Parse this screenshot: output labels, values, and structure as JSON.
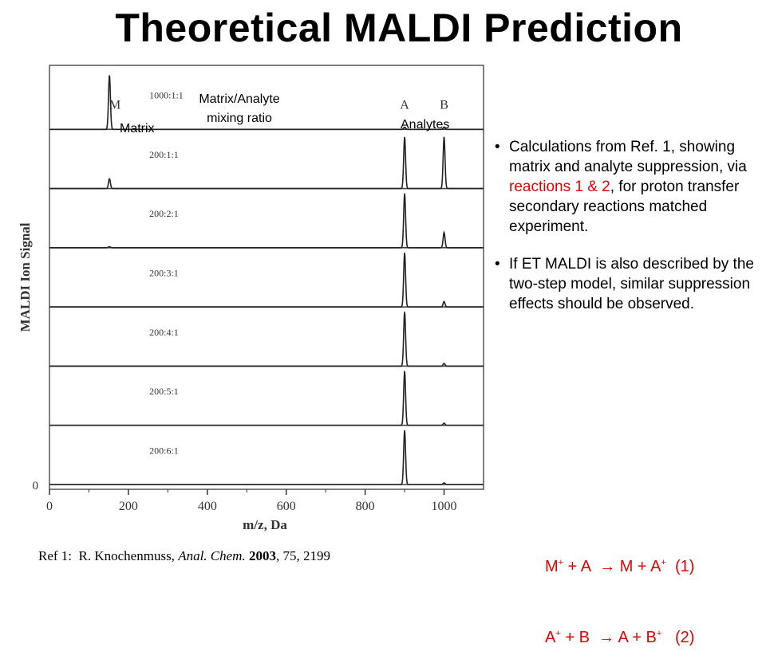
{
  "slide": {
    "title": "Theoretical MALDI Prediction",
    "annotations": {
      "matrix": "Matrix",
      "mixing_ratio_line1": "Matrix/Analyte",
      "mixing_ratio_line2": "mixing ratio",
      "analytes": "Analytes"
    },
    "bullets": [
      {
        "before": "Calculations from Ref. 1, showing matrix and analyte suppression, via ",
        "highlight": "reactions 1 & 2",
        "after": ", for proton transfer secondary reactions matched experiment."
      },
      {
        "before": " If ET MALDI is also described by the two-step model, similar suppression effects should be observed.",
        "highlight": "",
        "after": ""
      }
    ],
    "reactions": [
      {
        "lhs1": "M",
        "sup1": "+",
        "lhs2": " + A  ",
        "arrow": "→",
        "rhs1": " M + A",
        "sup2": "+",
        "label": "  (1)"
      },
      {
        "lhs1": "A",
        "sup1": "+",
        "lhs2": " + B  ",
        "arrow": "→",
        "rhs1": " A + B",
        "sup2": "+",
        "label": "   (2)"
      }
    ],
    "reference": {
      "prefix": "Ref 1:  R. Knochenmuss, ",
      "journal": "Anal. Chem.",
      "year": "2003",
      "rest": ", 75, 2199"
    }
  },
  "chart_data": {
    "type": "line",
    "xlabel": "m/z, Da",
    "ylabel": "MALDI Ion Signal",
    "xlim": [
      0,
      1100
    ],
    "x_ticks": [
      0,
      200,
      400,
      600,
      800,
      1000
    ],
    "y_tick_label": "0",
    "peak_labels": [
      {
        "label": "M",
        "x": 152
      },
      {
        "label": "A",
        "x": 900
      },
      {
        "label": "B",
        "x": 1000
      }
    ],
    "series": [
      {
        "name": "1000:1:1",
        "peaks": [
          {
            "x": 152,
            "h": 1.0
          },
          {
            "x": 900,
            "h": 0.04
          },
          {
            "x": 1000,
            "h": 0.04
          }
        ]
      },
      {
        "name": "200:1:1",
        "peaks": [
          {
            "x": 152,
            "h": 0.18
          },
          {
            "x": 900,
            "h": 0.95
          },
          {
            "x": 1000,
            "h": 0.95
          }
        ]
      },
      {
        "name": "200:2:1",
        "peaks": [
          {
            "x": 152,
            "h": 0.02
          },
          {
            "x": 900,
            "h": 1.0
          },
          {
            "x": 1000,
            "h": 0.28
          }
        ]
      },
      {
        "name": "200:3:1",
        "peaks": [
          {
            "x": 152,
            "h": 0.0
          },
          {
            "x": 900,
            "h": 1.0
          },
          {
            "x": 1000,
            "h": 0.1
          }
        ]
      },
      {
        "name": "200:4:1",
        "peaks": [
          {
            "x": 152,
            "h": 0.0
          },
          {
            "x": 900,
            "h": 1.0
          },
          {
            "x": 1000,
            "h": 0.05
          }
        ]
      },
      {
        "name": "200:5:1",
        "peaks": [
          {
            "x": 152,
            "h": 0.0
          },
          {
            "x": 900,
            "h": 1.0
          },
          {
            "x": 1000,
            "h": 0.04
          }
        ]
      },
      {
        "name": "200:6:1",
        "peaks": [
          {
            "x": 152,
            "h": 0.0
          },
          {
            "x": 900,
            "h": 1.0
          },
          {
            "x": 1000,
            "h": 0.03
          }
        ]
      }
    ]
  }
}
